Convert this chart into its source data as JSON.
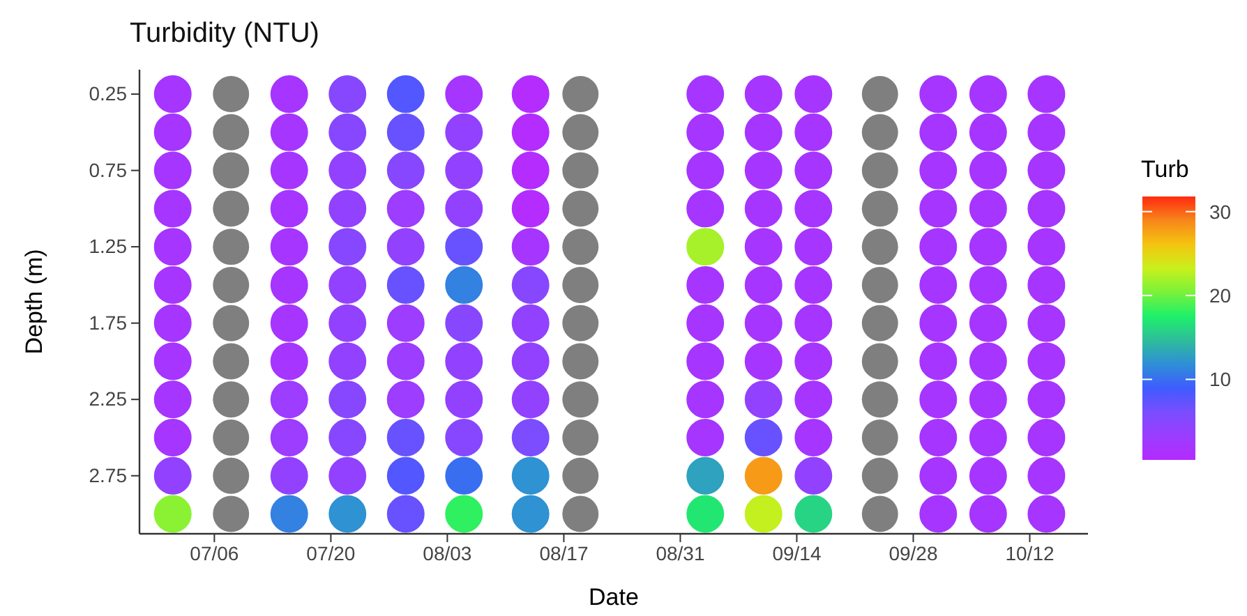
{
  "chart_data": {
    "type": "scatter",
    "title": "Turbidity (NTU)",
    "xlabel": "Date",
    "ylabel": "Depth (m)",
    "clabel": "Turb",
    "marker": "circle",
    "grid": false,
    "xlim": [
      "--06-27",
      "--10-19"
    ],
    "xticks": [
      {
        "value": "--07-06",
        "label": "07/06"
      },
      {
        "value": "--07-20",
        "label": "07/20"
      },
      {
        "value": "--08-03",
        "label": "08/03"
      },
      {
        "value": "--08-17",
        "label": "08/17"
      },
      {
        "value": "--08-31",
        "label": "08/31"
      },
      {
        "value": "--09-14",
        "label": "09/14"
      },
      {
        "value": "--09-28",
        "label": "09/28"
      },
      {
        "value": "--10-12",
        "label": "10/12"
      }
    ],
    "ylim": [
      3.13,
      0.09
    ],
    "yticks": [
      0.25,
      0.75,
      1.25,
      1.75,
      2.25,
      2.75
    ],
    "clim": [
      0.4,
      31.8
    ],
    "cticks": [
      10,
      20,
      30
    ],
    "series": [
      {
        "x": [
          "--07-01",
          "--07-01",
          "--07-01",
          "--07-01",
          "--07-01",
          "--07-01",
          "--07-01",
          "--07-01",
          "--07-01",
          "--07-01",
          "--07-01",
          "--07-01"
        ],
        "values": [
          0.25,
          0.5,
          0.75,
          1,
          1.25,
          1.5,
          1.75,
          2,
          2.25,
          2.5,
          2.75,
          3
        ],
        "cvalues": [
          2,
          2,
          2,
          2,
          2,
          2,
          2,
          2,
          2,
          2,
          4,
          21
        ],
        "colors": [
          "#a635ff",
          "#a635ff",
          "#a635ff",
          "#a635ff",
          "#a635ff",
          "#a635ff",
          "#a635ff",
          "#a635ff",
          "#a635ff",
          "#a635ff",
          "#9241ff",
          "#8bf233"
        ]
      },
      {
        "x": [
          "--07-08",
          "--07-08",
          "--07-08",
          "--07-08",
          "--07-08",
          "--07-08",
          "--07-08",
          "--07-08",
          "--07-08",
          "--07-08",
          "--07-08",
          "--07-08"
        ],
        "values": [
          0.25,
          0.5,
          0.75,
          1,
          1.25,
          1.5,
          1.75,
          2,
          2.25,
          2.5,
          2.75,
          3
        ],
        "cvalues": [
          null,
          null,
          null,
          null,
          null,
          null,
          null,
          null,
          null,
          null,
          null,
          null
        ],
        "color": "#7f7f7f"
      },
      {
        "x": [
          "--07-15",
          "--07-15",
          "--07-15",
          "--07-15",
          "--07-15",
          "--07-15",
          "--07-15",
          "--07-15",
          "--07-15",
          "--07-15",
          "--07-15",
          "--07-15"
        ],
        "values": [
          0.25,
          0.5,
          0.75,
          1,
          1.25,
          1.5,
          1.75,
          2,
          2.25,
          2.5,
          2.75,
          3
        ],
        "cvalues": [
          2,
          2,
          2,
          2,
          2,
          2,
          2,
          2,
          3,
          3,
          4,
          11
        ],
        "colors": [
          "#a635ff",
          "#a635ff",
          "#a635ff",
          "#a635ff",
          "#a635ff",
          "#a635ff",
          "#a635ff",
          "#a635ff",
          "#9c3dff",
          "#9c3dff",
          "#9241ff",
          "#3381e1"
        ]
      },
      {
        "x": [
          "--07-22",
          "--07-22",
          "--07-22",
          "--07-22",
          "--07-22",
          "--07-22",
          "--07-22",
          "--07-22",
          "--07-22",
          "--07-22",
          "--07-22",
          "--07-22"
        ],
        "values": [
          0.25,
          0.5,
          0.75,
          1,
          1.25,
          1.5,
          1.75,
          2,
          2.25,
          2.5,
          2.75,
          3
        ],
        "cvalues": [
          5,
          5,
          4,
          4,
          5,
          4,
          4,
          4,
          5,
          5,
          4,
          12
        ],
        "colors": [
          "#8747ff",
          "#8747ff",
          "#9241ff",
          "#9241ff",
          "#8747ff",
          "#9241ff",
          "#9241ff",
          "#9241ff",
          "#8747ff",
          "#8747ff",
          "#9241ff",
          "#2e92d3"
        ]
      },
      {
        "x": [
          "--07-29",
          "--07-29",
          "--07-29",
          "--07-29",
          "--07-29",
          "--07-29",
          "--07-29",
          "--07-29",
          "--07-29",
          "--07-29",
          "--07-29",
          "--07-29"
        ],
        "values": [
          0.25,
          0.5,
          0.75,
          1,
          1.25,
          1.5,
          1.75,
          2,
          2.25,
          2.5,
          2.75,
          3
        ],
        "cvalues": [
          8,
          7,
          5,
          3,
          4,
          7,
          3,
          3,
          3,
          7,
          8,
          7
        ],
        "colors": [
          "#5357ff",
          "#6852ff",
          "#8747ff",
          "#9c3dff",
          "#9241ff",
          "#6852ff",
          "#9c3dff",
          "#9c3dff",
          "#9c3dff",
          "#6852ff",
          "#5357ff",
          "#6852ff"
        ]
      },
      {
        "x": [
          "--08-05",
          "--08-05",
          "--08-05",
          "--08-05",
          "--08-05",
          "--08-05",
          "--08-05",
          "--08-05",
          "--08-05",
          "--08-05",
          "--08-05",
          "--08-05"
        ],
        "values": [
          0.25,
          0.5,
          0.75,
          1,
          1.25,
          1.5,
          1.75,
          2,
          2.25,
          2.5,
          2.75,
          3
        ],
        "cvalues": [
          2,
          4,
          4,
          4,
          7,
          11,
          5,
          4,
          4,
          5,
          10,
          18
        ],
        "colors": [
          "#a635ff",
          "#9241ff",
          "#9241ff",
          "#9241ff",
          "#6852ff",
          "#3381e1",
          "#8747ff",
          "#9241ff",
          "#9241ff",
          "#8747ff",
          "#396ef0",
          "#2ef060"
        ]
      },
      {
        "x": [
          "--08-13",
          "--08-13",
          "--08-13",
          "--08-13",
          "--08-13",
          "--08-13",
          "--08-13",
          "--08-13",
          "--08-13",
          "--08-13",
          "--08-13",
          "--08-13"
        ],
        "values": [
          0.25,
          0.5,
          0.75,
          1,
          1.25,
          1.5,
          1.75,
          2,
          2.25,
          2.5,
          2.75,
          3
        ],
        "cvalues": [
          1,
          1,
          1,
          1,
          2,
          5,
          4,
          4,
          4,
          6,
          12,
          12
        ],
        "colors": [
          "#b52cff",
          "#b52cff",
          "#b52cff",
          "#b52cff",
          "#a635ff",
          "#8747ff",
          "#9241ff",
          "#9241ff",
          "#9241ff",
          "#7c4cff",
          "#2e92d3",
          "#2e92d3"
        ]
      },
      {
        "x": [
          "--08-19",
          "--08-19",
          "--08-19",
          "--08-19",
          "--08-19",
          "--08-19",
          "--08-19",
          "--08-19",
          "--08-19",
          "--08-19",
          "--08-19",
          "--08-19"
        ],
        "values": [
          0.25,
          0.5,
          0.75,
          1,
          1.25,
          1.5,
          1.75,
          2,
          2.25,
          2.5,
          2.75,
          3
        ],
        "cvalues": [
          null,
          null,
          null,
          null,
          null,
          null,
          null,
          null,
          null,
          null,
          null,
          null
        ],
        "color": "#7f7f7f"
      },
      {
        "x": [
          "--09-03",
          "--09-03",
          "--09-03",
          "--09-03",
          "--09-03",
          "--09-03",
          "--09-03",
          "--09-03",
          "--09-03",
          "--09-03",
          "--09-03",
          "--09-03"
        ],
        "values": [
          0.25,
          0.5,
          0.75,
          1,
          1.25,
          1.5,
          1.75,
          2,
          2.25,
          2.5,
          2.75,
          3
        ],
        "cvalues": [
          2,
          2,
          2,
          2,
          22,
          2,
          2,
          2,
          2,
          2,
          13,
          17
        ],
        "colors": [
          "#a635ff",
          "#a635ff",
          "#a635ff",
          "#a635ff",
          "#a7f12a",
          "#a635ff",
          "#a635ff",
          "#a635ff",
          "#a635ff",
          "#a635ff",
          "#2ea2be",
          "#21e772"
        ]
      },
      {
        "x": [
          "--09-10",
          "--09-10",
          "--09-10",
          "--09-10",
          "--09-10",
          "--09-10",
          "--09-10",
          "--09-10",
          "--09-10",
          "--09-10",
          "--09-10",
          "--09-10"
        ],
        "values": [
          0.25,
          0.5,
          0.75,
          1,
          1.25,
          1.5,
          1.75,
          2,
          2.25,
          2.5,
          2.75,
          3
        ],
        "cvalues": [
          2,
          2,
          2,
          2,
          2,
          2,
          2,
          2,
          4,
          7,
          28,
          23
        ],
        "colors": [
          "#a635ff",
          "#a635ff",
          "#a635ff",
          "#a635ff",
          "#a635ff",
          "#a635ff",
          "#a635ff",
          "#a635ff",
          "#9241ff",
          "#6852ff",
          "#f69a17",
          "#c3f01e"
        ]
      },
      {
        "x": [
          "--09-16",
          "--09-16",
          "--09-16",
          "--09-16",
          "--09-16",
          "--09-16",
          "--09-16",
          "--09-16",
          "--09-16",
          "--09-16",
          "--09-16",
          "--09-16"
        ],
        "values": [
          0.25,
          0.5,
          0.75,
          1,
          1.25,
          1.5,
          1.75,
          2,
          2.25,
          2.5,
          2.75,
          3
        ],
        "cvalues": [
          2,
          2,
          2,
          2,
          2,
          2,
          2,
          2,
          2,
          2,
          4,
          16
        ],
        "colors": [
          "#a635ff",
          "#a635ff",
          "#a635ff",
          "#a635ff",
          "#a635ff",
          "#a635ff",
          "#a635ff",
          "#a635ff",
          "#a635ff",
          "#a635ff",
          "#9241ff",
          "#27d484"
        ]
      },
      {
        "x": [
          "--09-24",
          "--09-24",
          "--09-24",
          "--09-24",
          "--09-24",
          "--09-24",
          "--09-24",
          "--09-24",
          "--09-24",
          "--09-24",
          "--09-24",
          "--09-24"
        ],
        "values": [
          0.25,
          0.5,
          0.75,
          1,
          1.25,
          1.5,
          1.75,
          2,
          2.25,
          2.5,
          2.75,
          3
        ],
        "cvalues": [
          null,
          null,
          null,
          null,
          null,
          null,
          null,
          null,
          null,
          null,
          null,
          null
        ],
        "color": "#7f7f7f"
      },
      {
        "x": [
          "--10-01",
          "--10-01",
          "--10-01",
          "--10-01",
          "--10-01",
          "--10-01",
          "--10-01",
          "--10-01",
          "--10-01",
          "--10-01",
          "--10-01",
          "--10-01"
        ],
        "values": [
          0.25,
          0.5,
          0.75,
          1,
          1.25,
          1.5,
          1.75,
          2,
          2.25,
          2.5,
          2.75,
          3
        ],
        "cvalues": [
          2,
          2,
          2,
          2,
          2,
          2,
          2,
          2,
          2,
          2,
          2,
          2
        ],
        "color": "#a635ff"
      },
      {
        "x": [
          "--10-07",
          "--10-07",
          "--10-07",
          "--10-07",
          "--10-07",
          "--10-07",
          "--10-07",
          "--10-07",
          "--10-07",
          "--10-07",
          "--10-07",
          "--10-07"
        ],
        "values": [
          0.25,
          0.5,
          0.75,
          1,
          1.25,
          1.5,
          1.75,
          2,
          2.25,
          2.5,
          2.75,
          3
        ],
        "cvalues": [
          2,
          2,
          2,
          2,
          2,
          2,
          2,
          2,
          2,
          2,
          2,
          2
        ],
        "color": "#a635ff"
      },
      {
        "x": [
          "--10-14",
          "--10-14",
          "--10-14",
          "--10-14",
          "--10-14",
          "--10-14",
          "--10-14",
          "--10-14",
          "--10-14",
          "--10-14",
          "--10-14",
          "--10-14"
        ],
        "values": [
          0.25,
          0.5,
          0.75,
          1,
          1.25,
          1.5,
          1.75,
          2,
          2.25,
          2.5,
          2.75,
          3
        ],
        "cvalues": [
          2,
          2,
          2,
          2,
          2,
          2,
          2,
          2,
          2,
          2,
          2,
          2
        ],
        "color": "#a635ff"
      }
    ]
  }
}
